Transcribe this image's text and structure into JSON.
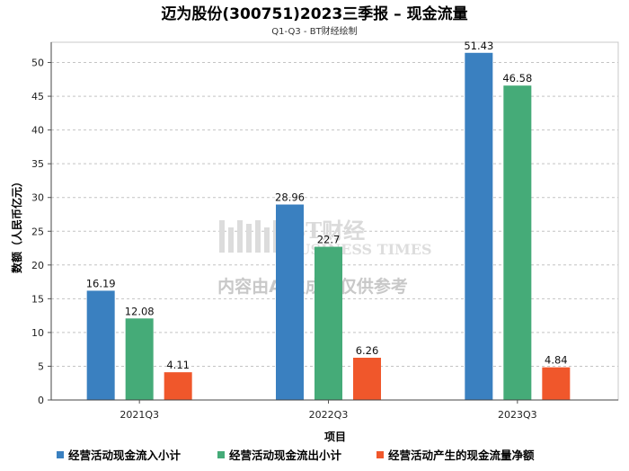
{
  "chart_data": {
    "type": "bar",
    "title": "迈为股份(300751)2023三季报 – 现金流量",
    "subtitle": "Q1-Q3 - BT财经绘制",
    "xlabel": "项目",
    "ylabel": "数额（人民币亿元）",
    "ylim": [
      0,
      53
    ],
    "yticks": [
      0,
      5,
      10,
      15,
      20,
      25,
      30,
      35,
      40,
      45,
      50
    ],
    "grid": true,
    "legend_position": "bottom",
    "categories": [
      "2021Q3",
      "2022Q3",
      "2023Q3"
    ],
    "series": [
      {
        "name": "经营活动现金流入小计",
        "color": "#3a80c0",
        "values": [
          16.19,
          28.96,
          51.43
        ],
        "labels": [
          "16.19",
          "28.96",
          "51.43"
        ]
      },
      {
        "name": "经营活动现金流出小计",
        "color": "#45ab78",
        "values": [
          12.08,
          22.7,
          46.58
        ],
        "labels": [
          "12.08",
          "22.7",
          "46.58"
        ]
      },
      {
        "name": "经营活动产生的现金流量净额",
        "color": "#f0572b",
        "values": [
          4.11,
          6.26,
          4.84
        ],
        "labels": [
          "4.11",
          "6.26",
          "4.84"
        ]
      }
    ]
  },
  "watermark": {
    "logo_text": "BT财经",
    "logo_sub": "BUSINESS TIMES",
    "notice": "内容由AI生成，仅供参考"
  }
}
